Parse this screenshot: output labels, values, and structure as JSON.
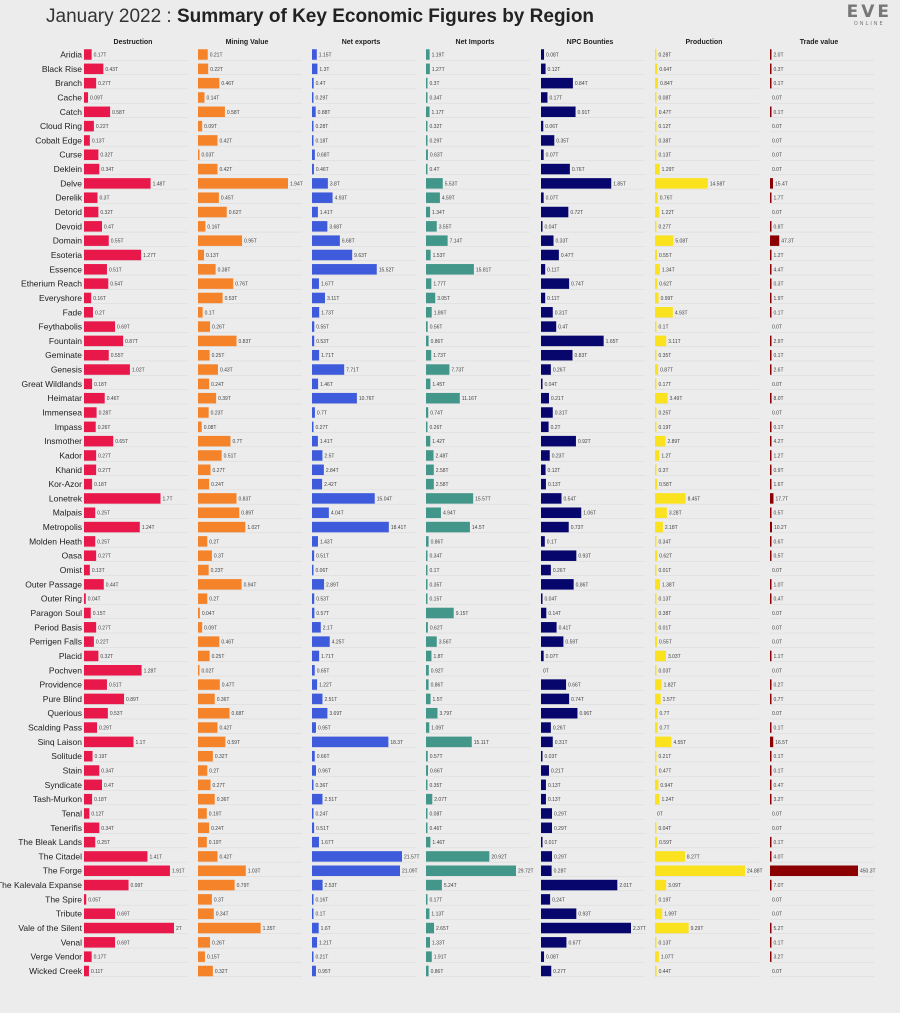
{
  "header": {
    "title_date": "January 2022",
    "title_sep": " : ",
    "title_main": "Summary of Key Economic Figures by Region"
  },
  "logo": {
    "line1": "EVE",
    "line2": "ONLINE"
  },
  "chart_data": {
    "type": "bar",
    "orientation": "horizontal",
    "title": "January 2022 : Summary of Key Economic Figures by Region",
    "grid": false,
    "legend": "none",
    "categories": [
      "Aridia",
      "Black Rise",
      "Branch",
      "Cache",
      "Catch",
      "Cloud Ring",
      "Cobalt Edge",
      "Curse",
      "Deklein",
      "Delve",
      "Derelik",
      "Detorid",
      "Devoid",
      "Domain",
      "Esoteria",
      "Essence",
      "Etherium Reach",
      "Everyshore",
      "Fade",
      "Feythabolis",
      "Fountain",
      "Geminate",
      "Genesis",
      "Great Wildlands",
      "Heimatar",
      "Immensea",
      "Impass",
      "Insmother",
      "Kador",
      "Khanid",
      "Kor-Azor",
      "Lonetrek",
      "Malpais",
      "Metropolis",
      "Molden Heath",
      "Oasa",
      "Omist",
      "Outer Passage",
      "Outer Ring",
      "Paragon Soul",
      "Period Basis",
      "Perrigen Falls",
      "Placid",
      "Pochven",
      "Providence",
      "Pure Blind",
      "Querious",
      "Scalding Pass",
      "Sinq Laison",
      "Solitude",
      "Stain",
      "Syndicate",
      "Tash-Murkon",
      "Tenal",
      "Tenerifis",
      "The Bleak Lands",
      "The Citadel",
      "The Forge",
      "The Kalevala Expanse",
      "The Spire",
      "Tribute",
      "Vale of the Silent",
      "Venal",
      "Verge Vendor",
      "Wicked Creek"
    ],
    "series": [
      {
        "name": "Destruction",
        "color": "#e8194a",
        "values": [
          0.17,
          0.43,
          0.27,
          0.09,
          0.58,
          0.22,
          0.13,
          0.32,
          0.34,
          1.48,
          0.3,
          0.32,
          0.4,
          0.55,
          1.27,
          0.51,
          0.54,
          0.16,
          0.2,
          0.69,
          0.87,
          0.55,
          1.02,
          0.18,
          0.46,
          0.28,
          0.26,
          0.65,
          0.27,
          0.27,
          0.18,
          1.7,
          0.25,
          1.24,
          0.25,
          0.27,
          0.13,
          0.44,
          0.04,
          0.15,
          0.27,
          0.22,
          0.32,
          1.28,
          0.51,
          0.89,
          0.53,
          0.29,
          1.1,
          0.19,
          0.34,
          0.4,
          0.18,
          0.12,
          0.34,
          0.25,
          1.41,
          1.91,
          0.99,
          0.05,
          0.69,
          2.0,
          0.69,
          0.17,
          0.11
        ]
      },
      {
        "name": "Mining Value",
        "color": "#f5832a",
        "values": [
          0.21,
          0.22,
          0.46,
          0.14,
          0.58,
          0.09,
          0.42,
          0.03,
          0.42,
          1.94,
          0.45,
          0.62,
          0.16,
          0.95,
          0.13,
          0.38,
          0.76,
          0.53,
          0.1,
          0.26,
          0.83,
          0.25,
          0.43,
          0.24,
          0.39,
          0.23,
          0.08,
          0.7,
          0.51,
          0.27,
          0.24,
          0.83,
          0.89,
          1.02,
          0.2,
          0.3,
          0.23,
          0.94,
          0.2,
          0.04,
          0.09,
          0.46,
          0.25,
          0.02,
          0.47,
          0.36,
          0.68,
          0.42,
          0.59,
          0.32,
          0.2,
          0.27,
          0.36,
          0.19,
          0.24,
          0.19,
          0.42,
          1.03,
          0.79,
          0.3,
          0.34,
          1.35,
          0.26,
          0.15,
          0.32
        ]
      },
      {
        "name": "Net exports",
        "color": "#3d5bdb",
        "values": [
          1.15,
          1.3,
          0.4,
          0.29,
          0.88,
          0.28,
          0.18,
          0.68,
          0.46,
          3.8,
          4.93,
          1.41,
          3.68,
          6.68,
          9.63,
          15.52,
          1.67,
          3.11,
          1.73,
          0.55,
          0.53,
          1.71,
          7.71,
          1.46,
          10.76,
          0.7,
          0.27,
          1.41,
          2.5,
          2.84,
          2.42,
          15.04,
          4.04,
          18.41,
          1.43,
          0.51,
          0.06,
          2.89,
          0.53,
          0.57,
          2.1,
          4.25,
          1.71,
          0.65,
          1.22,
          2.51,
          3.69,
          0.95,
          18.3,
          0.66,
          0.96,
          0.36,
          2.51,
          0.24,
          0.51,
          1.67,
          21.57,
          21.09,
          2.53,
          0.16,
          0.1,
          1.6,
          1.21,
          0.21,
          0.95
        ]
      },
      {
        "name": "Net Imports",
        "color": "#43968a",
        "values": [
          1.19,
          1.27,
          0.3,
          0.34,
          1.17,
          0.32,
          0.29,
          0.63,
          0.4,
          5.53,
          4.59,
          1.34,
          3.55,
          7.14,
          1.53,
          15.81,
          1.77,
          3.05,
          1.89,
          0.56,
          0.86,
          1.73,
          7.73,
          1.45,
          11.16,
          0.74,
          0.26,
          1.42,
          2.48,
          2.58,
          2.58,
          15.57,
          4.94,
          14.5,
          0.86,
          0.34,
          0.1,
          0.35,
          0.15,
          9.15,
          0.62,
          3.56,
          1.8,
          0.92,
          0.86,
          1.5,
          3.79,
          1.09,
          15.11,
          0.57,
          0.66,
          0.35,
          2.07,
          0.08,
          0.46,
          1.46,
          20.92,
          29.72,
          5.24,
          0.17,
          1.13,
          2.65,
          1.33,
          1.91,
          0.86
        ]
      },
      {
        "name": "NPC Bounties",
        "color": "#06066c",
        "values": [
          0.08,
          0.12,
          0.84,
          0.17,
          0.91,
          0.06,
          0.35,
          0.07,
          0.76,
          1.85,
          0.07,
          0.72,
          0.04,
          0.33,
          0.47,
          0.11,
          0.74,
          0.11,
          0.31,
          0.4,
          1.65,
          0.83,
          0.26,
          0.04,
          0.21,
          0.31,
          0.2,
          0.92,
          0.23,
          0.12,
          0.13,
          0.54,
          1.06,
          0.73,
          0.1,
          0.93,
          0.26,
          0.86,
          0.04,
          0.14,
          0.41,
          0.59,
          0.07,
          0.0,
          0.66,
          0.74,
          0.96,
          0.26,
          0.31,
          0.03,
          0.21,
          0.13,
          0.13,
          0.29,
          0.29,
          0.01,
          0.29,
          0.28,
          2.01,
          0.24,
          0.93,
          2.37,
          0.67,
          0.08,
          0.27
        ]
      },
      {
        "name": "Production",
        "color": "#fbe21e",
        "values": [
          0.28,
          0.64,
          0.84,
          0.08,
          0.47,
          0.12,
          0.38,
          0.13,
          1.29,
          14.58,
          0.76,
          1.22,
          0.27,
          5.08,
          0.55,
          1.34,
          0.62,
          0.99,
          4.93,
          0.1,
          3.11,
          0.35,
          0.87,
          0.17,
          3.49,
          0.25,
          0.19,
          2.89,
          1.2,
          0.3,
          0.58,
          8.45,
          3.28,
          2.18,
          0.34,
          0.62,
          0.01,
          1.38,
          0.13,
          0.38,
          0.01,
          0.55,
          3.03,
          0.03,
          1.82,
          1.57,
          0.7,
          0.7,
          4.55,
          0.21,
          0.47,
          0.94,
          1.24,
          0.0,
          0.04,
          0.59,
          8.27,
          24.88,
          3.09,
          0.19,
          1.99,
          9.29,
          0.13,
          1.07,
          0.44
        ]
      },
      {
        "name": "Trade value",
        "color": "#8b0000",
        "values": [
          2.0,
          0.3,
          0.1,
          0.0,
          0.1,
          0.0,
          0.0,
          0.0,
          0.0,
          15.4,
          1.7,
          0.0,
          0.8,
          47.3,
          1.2,
          4.4,
          0.3,
          1.9,
          0.1,
          0.0,
          2.9,
          0.1,
          2.6,
          0.0,
          8.0,
          0.0,
          0.1,
          4.2,
          1.2,
          0.9,
          1.6,
          17.7,
          0.5,
          10.2,
          0.6,
          0.5,
          0.0,
          1.0,
          0.4,
          0.0,
          0.0,
          0.0,
          1.1,
          0.0,
          0.2,
          0.7,
          0.0,
          0.1,
          16.5,
          0.1,
          0.1,
          0.4,
          3.2,
          0.0,
          0.0,
          0.1,
          4.0,
          450.3,
          7.0,
          0.0,
          0.0,
          5.2,
          0.1,
          3.2,
          0.0
        ]
      }
    ]
  }
}
